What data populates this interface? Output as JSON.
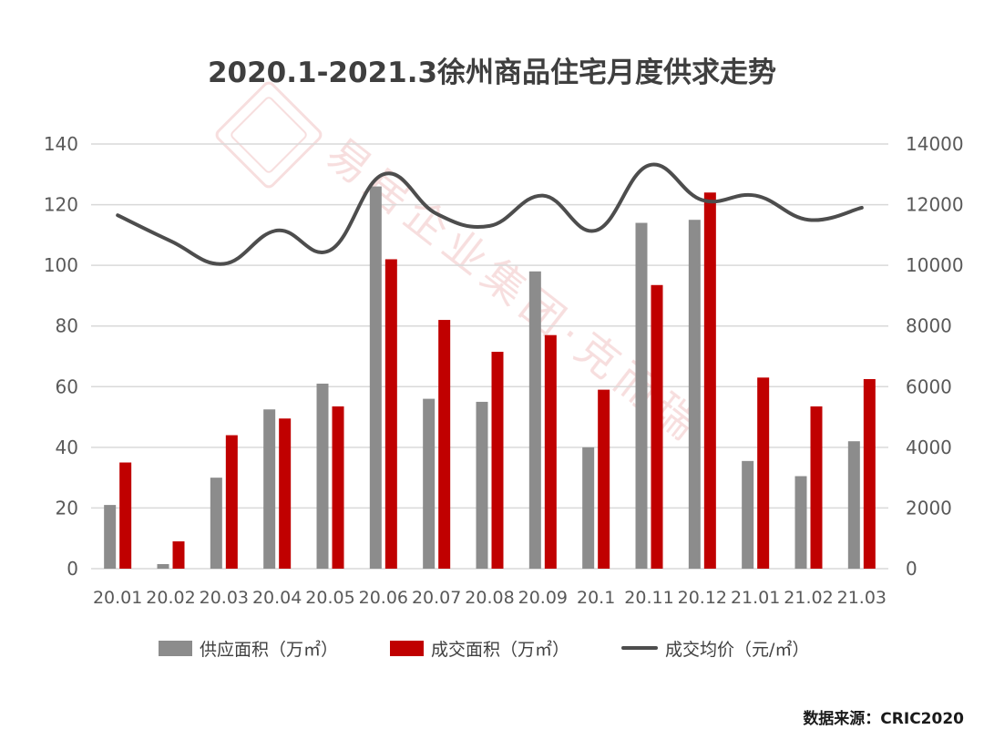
{
  "title": "2020.1-2021.3徐州商品住宅月度供求走势",
  "source": "数据来源：CRIC2020",
  "watermark": {
    "text": "易居企业集团·克而瑞"
  },
  "colors": {
    "supply": "#8c8c8c",
    "deal": "#c00000",
    "price": "#4d4d4d",
    "grid": "#d9d9d9",
    "axis_text": "#595959"
  },
  "chart_data": {
    "type": "bar",
    "title": "2020.1-2021.3徐州商品住宅月度供求走势",
    "categories": [
      "20.01",
      "20.02",
      "20.03",
      "20.04",
      "20.05",
      "20.06",
      "20.07",
      "20.08",
      "20.09",
      "20.1",
      "20.11",
      "20.12",
      "21.01",
      "21.02",
      "21.03"
    ],
    "series": [
      {
        "name": "供应面积（万㎡）",
        "type": "bar",
        "axis": "left",
        "values": [
          21,
          1.5,
          30,
          52.5,
          61,
          126,
          56,
          55,
          98,
          40,
          114,
          115,
          35.5,
          30.5,
          42
        ]
      },
      {
        "name": "成交面积（万㎡）",
        "type": "bar",
        "axis": "left",
        "values": [
          35,
          9,
          44,
          49.5,
          53.5,
          102,
          82,
          71.5,
          77,
          59,
          93.5,
          124,
          63,
          53.5,
          62.5
        ]
      },
      {
        "name": "成交均价（元/㎡）",
        "type": "line",
        "axis": "right",
        "values": [
          11650,
          10800,
          10050,
          11150,
          10500,
          13000,
          11700,
          11300,
          12300,
          11150,
          13300,
          12150,
          12300,
          11500,
          11900
        ]
      }
    ],
    "ylim": [
      0,
      140
    ],
    "yticks": [
      0,
      20,
      40,
      60,
      80,
      100,
      120,
      140
    ],
    "y2lim": [
      0,
      14000
    ],
    "y2ticks": [
      0,
      2000,
      4000,
      6000,
      8000,
      10000,
      12000,
      14000
    ],
    "grid": true,
    "legend_position": "bottom"
  }
}
